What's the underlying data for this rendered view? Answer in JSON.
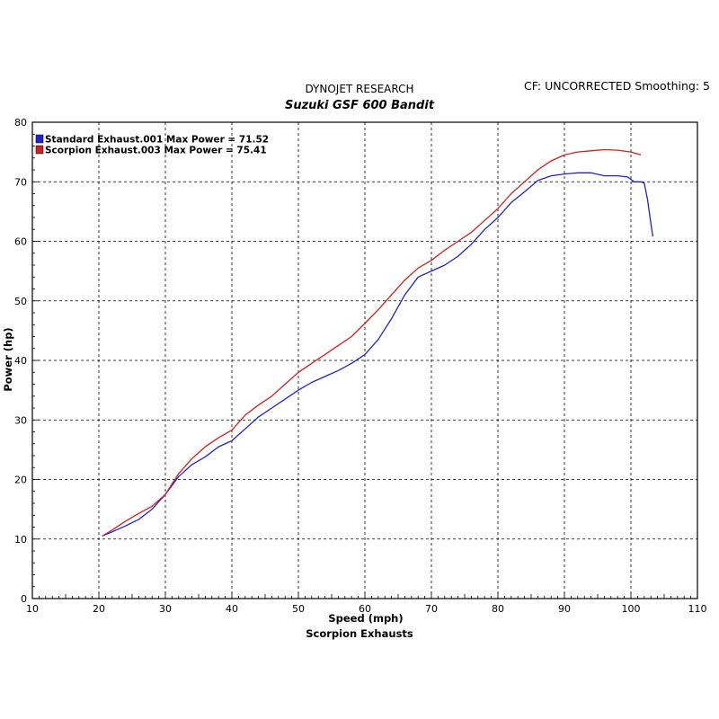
{
  "header": {
    "title": "DYNOJET RESEARCH",
    "subtitle": "Suzuki GSF 600 Bandit",
    "correction": "CF: UNCORRECTED  Smoothing: 5"
  },
  "caption": "Scorpion Exhausts",
  "chart_data": {
    "type": "line",
    "xlabel": "Speed (mph)",
    "ylabel": "Power (hp)",
    "xlim": [
      10,
      110
    ],
    "ylim": [
      0,
      80
    ],
    "xticks": [
      10,
      20,
      30,
      40,
      50,
      60,
      70,
      80,
      90,
      100,
      110
    ],
    "yticks": [
      0,
      10,
      20,
      30,
      40,
      50,
      60,
      70,
      80
    ],
    "grid": true,
    "legend_position": "top-left",
    "series": [
      {
        "name": "Standard Exhaust.001 Max Power = 71.52",
        "color": "#2222cc",
        "x": [
          20.5,
          22,
          24,
          26,
          28,
          30,
          32,
          34,
          36,
          38,
          40,
          42,
          44,
          46,
          48,
          50,
          52,
          54,
          56,
          58,
          60,
          62,
          64,
          66,
          68,
          70,
          72,
          74,
          76,
          78,
          80,
          82,
          84,
          86,
          88,
          90,
          92,
          94,
          96,
          98,
          99.5,
          100.5,
          101.5,
          102,
          102.5,
          103,
          103.3
        ],
        "y": [
          10.5,
          11.2,
          12.2,
          13.3,
          15,
          17.5,
          20.5,
          22.5,
          23.8,
          25.5,
          26.5,
          28.5,
          30.5,
          32,
          33.5,
          35,
          36.3,
          37.3,
          38.3,
          39.5,
          41,
          43.5,
          47,
          51,
          54,
          55,
          56,
          57.5,
          59.5,
          62,
          64,
          66.5,
          68.3,
          70.2,
          71,
          71.3,
          71.5,
          71.5,
          71,
          71,
          70.8,
          70,
          70,
          69.8,
          67,
          63,
          60.8
        ]
      },
      {
        "name": "Scorpion Exhaust.003 Max Power = 75.41",
        "color": "#cc2222",
        "x": [
          20.5,
          22,
          24,
          26,
          28,
          30,
          32,
          34,
          36,
          38,
          40,
          42,
          44,
          46,
          48,
          50,
          52,
          54,
          56,
          58,
          60,
          62,
          64,
          66,
          68,
          70,
          72,
          74,
          76,
          78,
          80,
          82,
          84,
          86,
          88,
          90,
          92,
          94,
          96,
          98,
          100,
          101.5
        ],
        "y": [
          10.5,
          11.5,
          13,
          14.3,
          15.5,
          17.5,
          21,
          23.5,
          25.5,
          27,
          28.3,
          30.8,
          32.5,
          34,
          36,
          38,
          39.5,
          41,
          42.5,
          44,
          46.2,
          48.5,
          51,
          53.5,
          55.5,
          56.8,
          58.5,
          60,
          61.5,
          63.5,
          65.5,
          68,
          70,
          72,
          73.5,
          74.5,
          75,
          75.2,
          75.4,
          75.3,
          75,
          74.5
        ]
      }
    ]
  }
}
